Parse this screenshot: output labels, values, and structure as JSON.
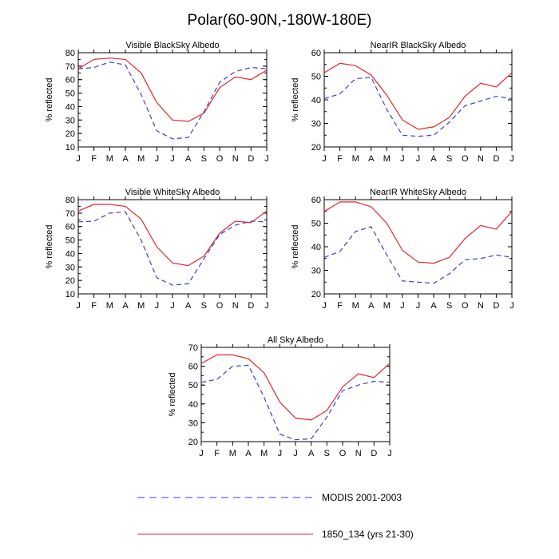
{
  "title": "Polar(60-90N,-180W-180E)",
  "colors": {
    "modis": "#3b3bd6",
    "model": "#e0282a"
  },
  "chart_data": [
    {
      "type": "line",
      "title": "Visible BlackSky Albedo",
      "ylabel": "% reflected",
      "ylim": [
        10,
        80
      ],
      "yticks": [
        10,
        20,
        30,
        40,
        50,
        60,
        70,
        80
      ],
      "categories": [
        "J",
        "F",
        "M",
        "A",
        "M",
        "J",
        "J",
        "A",
        "S",
        "O",
        "N",
        "D",
        "J"
      ],
      "series": [
        {
          "name": "MODIS 2001-2003",
          "values": [
            68,
            69,
            73,
            71,
            49,
            22,
            16,
            17,
            36,
            58,
            66,
            69,
            68
          ]
        },
        {
          "name": "1850_134 (yrs 21-30)",
          "values": [
            68,
            75,
            76,
            75,
            65,
            43,
            30,
            29,
            35,
            54,
            62,
            60,
            67
          ]
        }
      ]
    },
    {
      "type": "line",
      "title": "NearIR BlackSky Albedo",
      "ylabel": "% reflected",
      "ylim": [
        20,
        60
      ],
      "yticks": [
        20,
        30,
        40,
        50,
        60
      ],
      "categories": [
        "J",
        "F",
        "M",
        "A",
        "M",
        "J",
        "J",
        "A",
        "S",
        "O",
        "N",
        "D",
        "J"
      ],
      "series": [
        {
          "name": "MODIS 2001-2003",
          "values": [
            40.5,
            42.5,
            49,
            49.5,
            36,
            25,
            24.5,
            25,
            30.5,
            37.5,
            39.5,
            41.5,
            40.5
          ]
        },
        {
          "name": "1850_134 (yrs 21-30)",
          "values": [
            51.5,
            55.5,
            54.5,
            50.5,
            42,
            31.5,
            27.5,
            28.5,
            32.5,
            41.5,
            47,
            45.5,
            51.5
          ]
        }
      ]
    },
    {
      "type": "line",
      "title": "Visible WhiteSky Albedo",
      "ylabel": "% reflected",
      "ylim": [
        10,
        80
      ],
      "yticks": [
        10,
        20,
        30,
        40,
        50,
        60,
        70,
        80
      ],
      "categories": [
        "J",
        "F",
        "M",
        "A",
        "M",
        "J",
        "J",
        "A",
        "S",
        "O",
        "N",
        "D",
        "J"
      ],
      "series": [
        {
          "name": "MODIS 2001-2003",
          "values": [
            63.5,
            64,
            70,
            71,
            50,
            22,
            16.5,
            17.5,
            36,
            54,
            61,
            64,
            63.5
          ]
        },
        {
          "name": "1850_134 (yrs 21-30)",
          "values": [
            71.5,
            76.5,
            76.5,
            75,
            65.5,
            45,
            33,
            31,
            38,
            55,
            64,
            63,
            71.5
          ]
        }
      ]
    },
    {
      "type": "line",
      "title": "NearIR WhiteSky Albedo",
      "ylabel": "% reflected",
      "ylim": [
        20,
        60
      ],
      "yticks": [
        20,
        30,
        40,
        50,
        60
      ],
      "categories": [
        "J",
        "F",
        "M",
        "A",
        "M",
        "J",
        "J",
        "A",
        "S",
        "O",
        "N",
        "D",
        "J"
      ],
      "series": [
        {
          "name": "MODIS 2001-2003",
          "values": [
            35.5,
            38,
            46.5,
            48.5,
            36.5,
            25.5,
            25,
            24.5,
            28.5,
            34.5,
            35,
            36.5,
            35.5
          ]
        },
        {
          "name": "1850_134 (yrs 21-30)",
          "values": [
            55,
            59,
            59,
            57,
            50,
            38.5,
            33.5,
            33,
            35.5,
            43.5,
            49,
            47.5,
            55
          ]
        }
      ]
    },
    {
      "type": "line",
      "title": "All Sky Albedo",
      "ylabel": "% reflected",
      "ylim": [
        20,
        70
      ],
      "yticks": [
        20,
        30,
        40,
        50,
        60,
        70
      ],
      "categories": [
        "J",
        "F",
        "M",
        "A",
        "M",
        "J",
        "J",
        "A",
        "S",
        "O",
        "N",
        "D",
        "J"
      ],
      "series": [
        {
          "name": "MODIS 2001-2003",
          "values": [
            51.5,
            53,
            60,
            60.5,
            43.5,
            24,
            21,
            21.5,
            33,
            47,
            50,
            52,
            51.5
          ]
        },
        {
          "name": "1850_134 (yrs 21-30)",
          "values": [
            61.5,
            66,
            66,
            64,
            56.5,
            41,
            32.5,
            31.5,
            36.5,
            49,
            56,
            54,
            61.5
          ]
        }
      ]
    }
  ],
  "legend": [
    {
      "label": "MODIS 2001-2003",
      "style": "dashed",
      "color": "#3b3bd6"
    },
    {
      "label": "1850_134 (yrs 21-30)",
      "style": "solid",
      "color": "#e0282a"
    }
  ]
}
